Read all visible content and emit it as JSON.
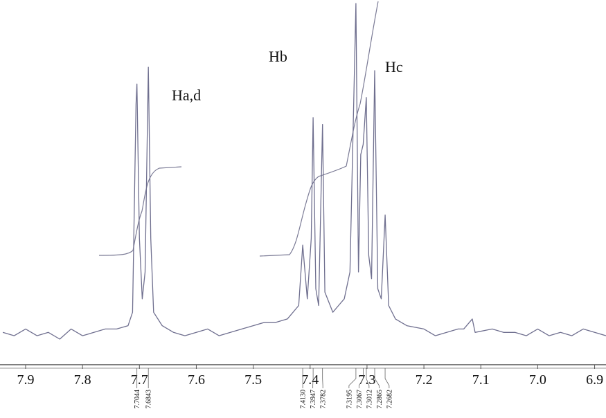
{
  "chart_data": {
    "type": "nmr",
    "xlim": [
      7.945,
      6.88
    ],
    "ylim": [
      0,
      100
    ],
    "xticks": [
      7.9,
      7.8,
      7.7,
      7.6,
      7.5,
      7.4,
      7.3,
      7.2,
      7.1,
      {
        "value": 7,
        "label": "7.0"
      },
      6.9
    ],
    "series": [
      {
        "color": "#6f6f8f",
        "x": [
          7.94,
          7.92,
          7.9,
          7.88,
          7.86,
          7.84,
          7.82,
          7.8,
          7.78,
          7.76,
          7.74,
          7.72,
          7.712,
          7.706,
          7.7044,
          7.7,
          7.695,
          7.69,
          7.6843,
          7.68,
          7.675,
          7.66,
          7.64,
          7.62,
          7.6,
          7.58,
          7.56,
          7.54,
          7.52,
          7.5,
          7.48,
          7.46,
          7.44,
          7.42,
          7.413,
          7.405,
          7.398,
          7.3947,
          7.39,
          7.385,
          7.3782,
          7.374,
          7.36,
          7.35,
          7.34,
          7.33,
          7.3195,
          7.315,
          7.311,
          7.3067,
          7.3012,
          7.297,
          7.292,
          7.2865,
          7.281,
          7.275,
          7.2682,
          7.262,
          7.25,
          7.23,
          7.2,
          7.18,
          7.16,
          7.14,
          7.13,
          7.115,
          7.11,
          7.08,
          7.06,
          7.04,
          7.02,
          7.0,
          6.98,
          6.96,
          6.94,
          6.92,
          6.9,
          6.88
        ],
        "values": [
          2,
          1,
          3,
          1,
          2,
          0,
          3,
          1,
          2,
          3,
          3,
          4,
          8,
          70,
          76,
          30,
          12,
          20,
          81,
          30,
          8,
          4,
          2,
          1,
          2,
          3,
          1,
          2,
          3,
          4,
          5,
          5,
          6,
          10,
          28,
          12,
          30,
          66,
          15,
          10,
          64,
          14,
          8,
          10,
          12,
          20,
          100,
          20,
          55,
          58,
          72,
          25,
          18,
          80,
          15,
          12,
          37,
          10,
          6,
          4,
          3,
          1,
          2,
          3,
          3,
          6,
          2,
          3,
          2,
          2,
          1,
          3,
          1,
          2,
          1,
          3,
          2,
          1
        ]
      }
    ],
    "peaks": {
      "values": [
        7.7044,
        7.6843,
        7.413,
        7.3947,
        7.3782,
        7.3195,
        7.3067,
        7.3012,
        7.2865,
        7.2682
      ],
      "value_labels": [
        "7.7044",
        "7.6843",
        "7.4130",
        "7.3947",
        "7.3782",
        "7.3195",
        "7.3067",
        "7.3012",
        "7.2865",
        "7.2682"
      ]
    },
    "annotations": [
      "Ha,d",
      "Hb",
      "Hc"
    ]
  }
}
